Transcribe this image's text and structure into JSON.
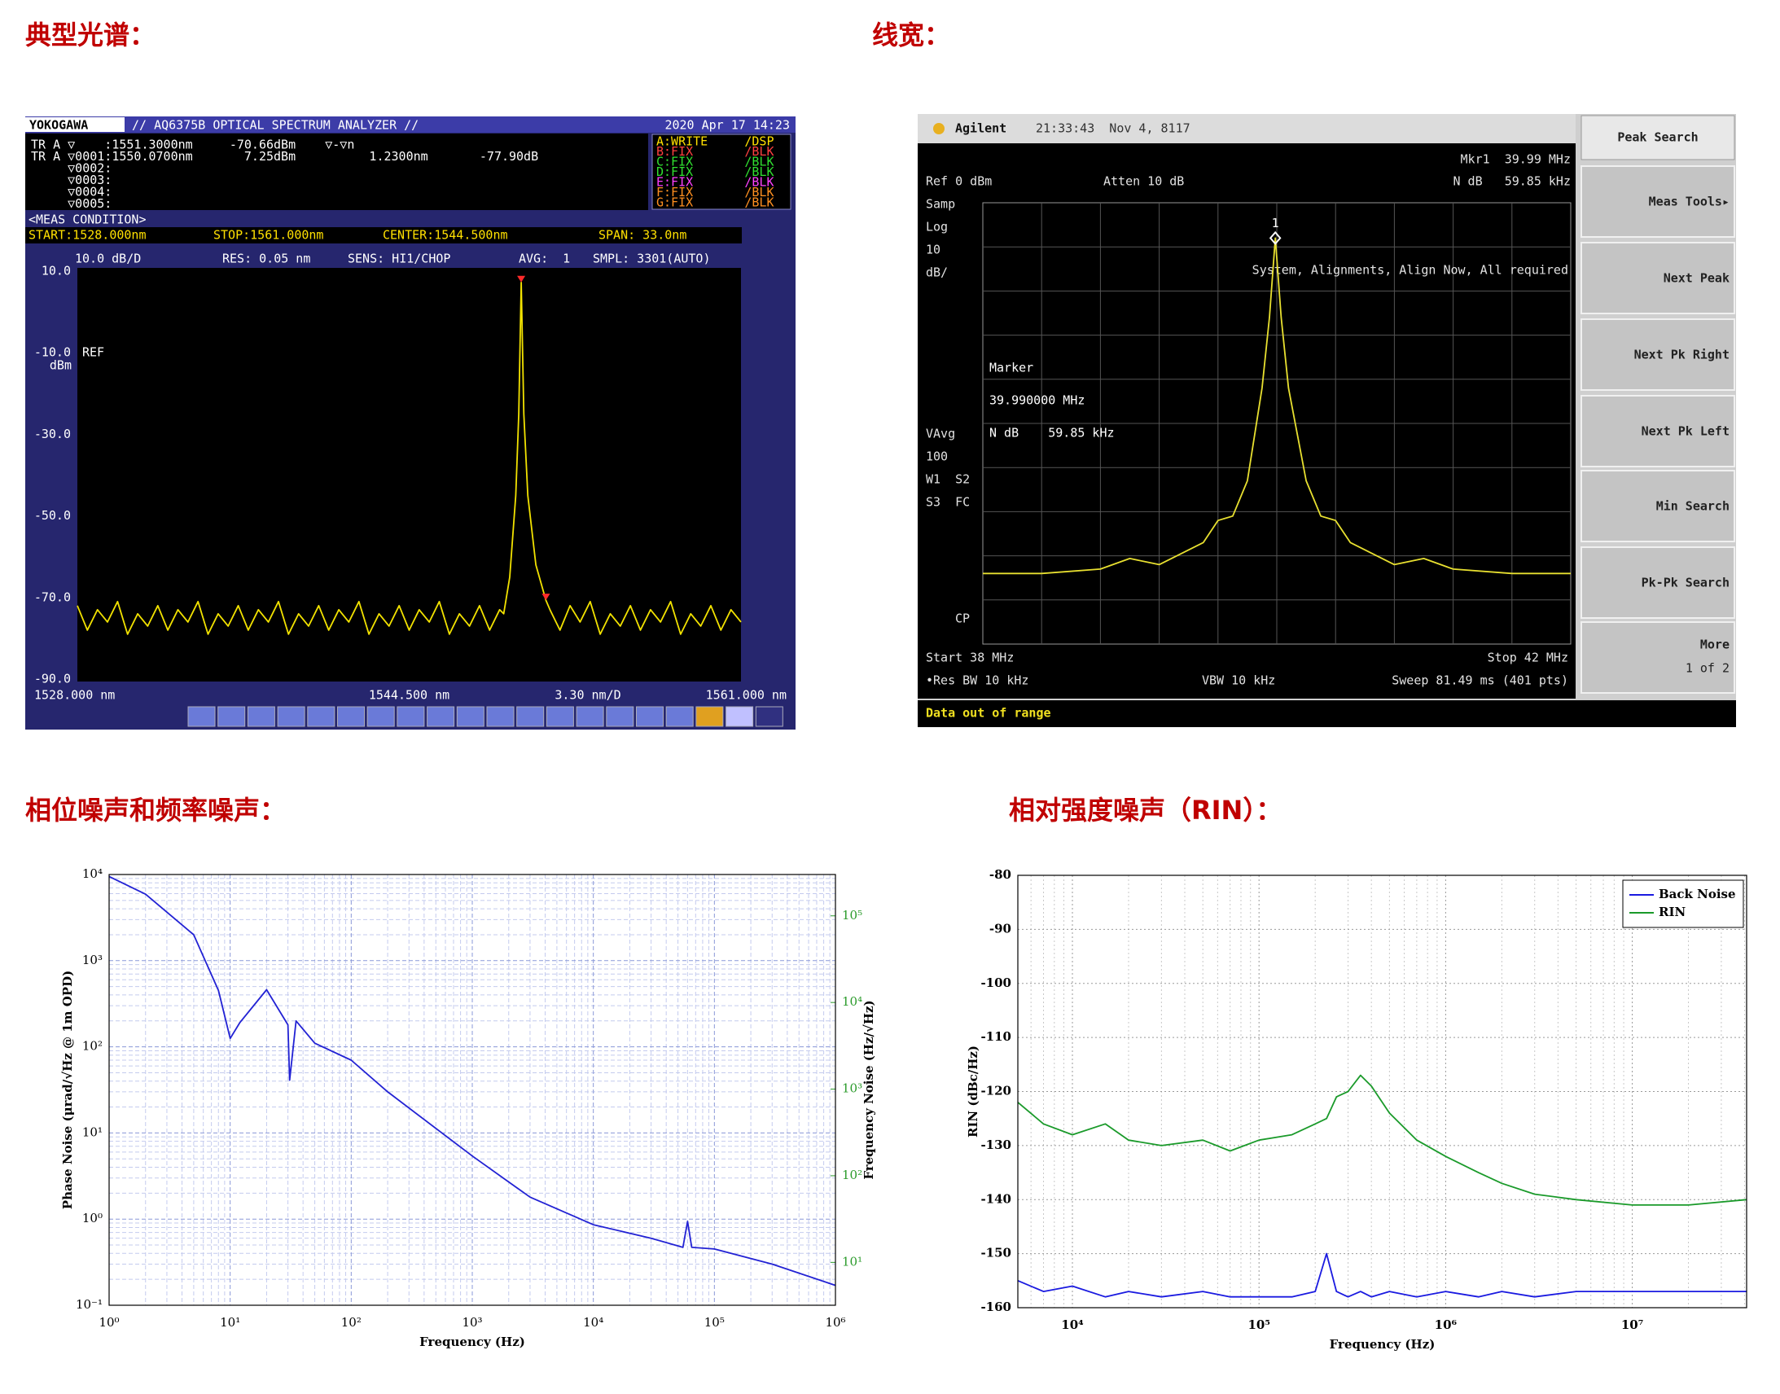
{
  "headings": [
    "典型光谱：",
    "线宽：",
    "相位噪声和频率噪声：",
    "相对强度噪声（RIN）："
  ],
  "chart_data": [
    {
      "type": "line",
      "brand": "YOKOGAWA",
      "title": "// AQ6375B OPTICAL SPECTRUM ANALYZER //",
      "datetime": "2020 Apr 17 14:23",
      "info_lines": [
        "TR A ▽    :1551.3000nm     -70.66dBm    ▽-▽n",
        "TR A ▽0001:1550.0700nm       7.25dBm          1.2300nm       -77.90dB",
        "     ▽0002:",
        "     ▽0003:",
        "     ▽0004:",
        "     ▽0005:"
      ],
      "trace_table": [
        "A:WRITE     /DSP",
        "B:FIX       /BLK",
        "C:FIX       /BLK",
        "D:FIX       /BLK",
        "E:FIX       /BLK",
        "F:FIX       /BLK",
        "G:FIX       /BLK"
      ],
      "meas_condition_label": "<MEAS CONDITION>",
      "conditions": [
        "START:1528.000nm",
        "STOP:1561.000nm",
        "CENTER:1544.500nm",
        "SPAN: 33.0nm"
      ],
      "settings": [
        "10.0 dB/D",
        "RES: 0.05 nm",
        "SENS: HI1/CHOP",
        "AVG:  1",
        "SMPL: 3301(AUTO)"
      ],
      "ref_text": "REF",
      "y_unit": "dBm",
      "x_per_div": "3.30 nm/D",
      "color": "#f2e200",
      "marker_color": "#ff2a2a",
      "x": [
        1528,
        1528.5,
        1529,
        1529.5,
        1530,
        1530.5,
        1531,
        1531.5,
        1532,
        1532.5,
        1533,
        1533.5,
        1534,
        1534.5,
        1535,
        1535.5,
        1536,
        1536.5,
        1537,
        1537.5,
        1538,
        1538.5,
        1539,
        1539.5,
        1540,
        1540.5,
        1541,
        1541.5,
        1542,
        1542.5,
        1543,
        1543.5,
        1544,
        1544.5,
        1545,
        1545.5,
        1546,
        1546.5,
        1547,
        1547.5,
        1548,
        1548.5,
        1549,
        1549.2,
        1549.5,
        1549.8,
        1549.95,
        1550.07,
        1550.2,
        1550.4,
        1550.8,
        1551.3,
        1551.5,
        1552,
        1552.5,
        1553,
        1553.5,
        1554,
        1554.5,
        1555,
        1555.5,
        1556,
        1556.5,
        1557,
        1557.5,
        1558,
        1558.5,
        1559,
        1559.5,
        1560,
        1560.5,
        1561
      ],
      "values": [
        -72,
        -78,
        -73,
        -76,
        -71,
        -79,
        -74,
        -77,
        -72,
        -78,
        -73,
        -76,
        -71,
        -79,
        -74,
        -77,
        -72,
        -78,
        -73,
        -76,
        -71,
        -79,
        -74,
        -77,
        -72,
        -78,
        -73,
        -76,
        -71,
        -79,
        -74,
        -77,
        -72,
        -78,
        -73,
        -76,
        -71,
        -79,
        -74,
        -77,
        -72,
        -78,
        -73,
        -74,
        -65,
        -45,
        -25,
        7.25,
        -25,
        -45,
        -62,
        -70.66,
        -73,
        -78,
        -72,
        -76,
        -71,
        -79,
        -74,
        -77,
        -72,
        -78,
        -73,
        -76,
        -71,
        -79,
        -74,
        -77,
        -72,
        -78,
        -73,
        -76
      ],
      "markers": [
        {
          "x": 1550.07,
          "value": 7.25
        },
        {
          "x": 1551.3,
          "value": -70.66
        }
      ],
      "xlim": [
        1528,
        1561
      ],
      "ylim": [
        -90,
        10
      ],
      "xticks": [
        {
          "value": 1528,
          "label": "1528.000 nm"
        },
        {
          "value": 1544.5,
          "label": "1544.500 nm"
        },
        {
          "value": 1561,
          "label": "1561.000 nm"
        }
      ],
      "yticks": [
        {
          "value": 10,
          "label": "10.0"
        },
        {
          "value": -10,
          "label": "-10.0"
        },
        {
          "value": -30,
          "label": "-30.0"
        },
        {
          "value": -50,
          "label": "-50.0"
        },
        {
          "value": -70,
          "label": "-70.0"
        },
        {
          "value": -90,
          "label": "-90.0"
        }
      ]
    },
    {
      "type": "line",
      "brand": "Agilent",
      "datetime": "21:33:43  Nov 4, 8117",
      "marker_readout": [
        "Mkr1  39.99 MHz",
        "N dB   59.85 kHz"
      ],
      "ref": "Ref 0 dBm",
      "atten": "Atten 10 dB",
      "left_panel": [
        "Samp",
        "Log",
        "10",
        "dB/"
      ],
      "message": "System, Alignments, Align Now, All required",
      "marker_box": [
        "Marker",
        "39.990000 MHz",
        "N dB    59.85 kHz"
      ],
      "left_panel_2": [
        "VAvg",
        "100",
        "W1  S2",
        "S3  FC"
      ],
      "cp": "CP",
      "start": "Start 38 MHz",
      "stop": "Stop 42 MHz",
      "res_bw": "•Res BW 10 kHz",
      "vbw": "VBW 10 kHz",
      "sweep": "Sweep 81.49 ms (401 pts)",
      "status": "Data out of range",
      "softkey_title": "Peak Search",
      "softkeys": [
        "Meas Tools▸",
        "Next Peak",
        "Next Pk Right",
        "Next Pk Left",
        "Min Search",
        "Pk-Pk Search"
      ],
      "more": [
        "More",
        "1 of 2"
      ],
      "color": "#e8e030",
      "grid": true,
      "x": [
        38,
        38.4,
        38.8,
        39.0,
        39.2,
        39.5,
        39.6,
        39.7,
        39.8,
        39.9,
        39.95,
        39.99,
        40.03,
        40.08,
        40.2,
        40.3,
        40.4,
        40.5,
        40.8,
        41.0,
        41.2,
        41.6,
        42
      ],
      "values": [
        -84,
        -84,
        -83,
        -80.6,
        -82,
        -77,
        -72,
        -71,
        -63,
        -42,
        -26,
        -8,
        -26,
        -42,
        -63,
        -71,
        -72,
        -77,
        -82,
        -80.6,
        -83,
        -84,
        -84
      ],
      "markers": [
        {
          "x": 39.99,
          "value": -8,
          "label": "1"
        }
      ],
      "xlim": [
        38,
        42
      ],
      "ylim": [
        -100,
        0
      ]
    },
    {
      "type": "line",
      "xscale": "log",
      "yscale": "log",
      "y2scale": "log",
      "xlabel": "Frequency (Hz)",
      "ylabel": "Phase Noise (μrad/√Hz @ 1m OPD)",
      "y2label": "Frequency Noise (Hz/√Hz)",
      "color": "#2222d4",
      "y2_color": "#2a9a2a",
      "grid": true,
      "minor_grid": true,
      "x": [
        1,
        2,
        5,
        8,
        10,
        12,
        20,
        30,
        31,
        35,
        50,
        100,
        200,
        1000,
        3000,
        10000,
        30000,
        55000,
        60000,
        65000,
        100000,
        300000,
        1000000
      ],
      "values": [
        9500,
        5900,
        2000,
        450,
        125,
        190,
        460,
        180,
        41,
        200,
        110,
        70,
        30,
        5.4,
        1.8,
        0.86,
        0.6,
        0.47,
        0.94,
        0.47,
        0.45,
        0.3,
        0.17
      ],
      "xlim": [
        1,
        1000000
      ],
      "ylim": [
        0.1,
        10000
      ],
      "y2lim": [
        3.2,
        300000
      ],
      "xticks": [
        {
          "value": 1,
          "label": "10⁰"
        },
        {
          "value": 10,
          "label": "10¹"
        },
        {
          "value": 100,
          "label": "10²"
        },
        {
          "value": 1000,
          "label": "10³"
        },
        {
          "value": 10000,
          "label": "10⁴"
        },
        {
          "value": 100000,
          "label": "10⁵"
        },
        {
          "value": 1000000,
          "label": "10⁶"
        }
      ],
      "yticks": [
        {
          "value": 0.1,
          "label": "10⁻¹"
        },
        {
          "value": 1,
          "label": "10⁰"
        },
        {
          "value": 10,
          "label": "10¹"
        },
        {
          "value": 100,
          "label": "10²"
        },
        {
          "value": 1000,
          "label": "10³"
        },
        {
          "value": 10000,
          "label": "10⁴"
        }
      ],
      "y2ticks": [
        {
          "value": 10,
          "label": "10¹"
        },
        {
          "value": 100,
          "label": "10²"
        },
        {
          "value": 1000,
          "label": "10³"
        },
        {
          "value": 10000,
          "label": "10⁴"
        },
        {
          "value": 100000,
          "label": "10⁵"
        }
      ]
    },
    {
      "type": "line",
      "xscale": "log",
      "xlabel": "Frequency (Hz)",
      "ylabel": "RIN (dBc/Hz)",
      "grid": true,
      "minor_grid": true,
      "legend": "upper right",
      "x": [
        5100,
        7000,
        10000,
        15000,
        20000,
        30000,
        50000,
        70000,
        100000,
        150000,
        200000,
        230000,
        260000,
        300000,
        350000,
        400000,
        500000,
        700000,
        1000000,
        1500000,
        2000000,
        3000000,
        5000000,
        10000000,
        20000000,
        41000000
      ],
      "series": [
        {
          "name": "Back Noise",
          "color": "#1a1ae0",
          "values": [
            -155,
            -157,
            -156,
            -158,
            -157,
            -158,
            -157,
            -158,
            -158,
            -158,
            -157,
            -150,
            -157,
            -158,
            -157,
            -158,
            -157,
            -158,
            -157,
            -158,
            -157,
            -158,
            -157,
            -157,
            -157,
            -157
          ]
        },
        {
          "name": "RIN",
          "color": "#1a9a2a",
          "values": [
            -122,
            -126,
            -128,
            -126,
            -129,
            -130,
            -129,
            -131,
            -129,
            -128,
            -126,
            -125,
            -121,
            -120,
            -117,
            -119,
            -124,
            -129,
            -132,
            -135,
            -137,
            -139,
            -140,
            -141,
            -141,
            -140
          ]
        }
      ],
      "xlim": [
        5100,
        41000000
      ],
      "ylim": [
        -160,
        -80
      ],
      "xticks": [
        {
          "value": 10000,
          "label": "10⁴"
        },
        {
          "value": 100000,
          "label": "10⁵"
        },
        {
          "value": 1000000,
          "label": "10⁶"
        },
        {
          "value": 10000000,
          "label": "10⁷"
        }
      ],
      "yticks": [
        -80,
        -90,
        -100,
        -110,
        -120,
        -130,
        -140,
        -150,
        -160
      ]
    }
  ]
}
